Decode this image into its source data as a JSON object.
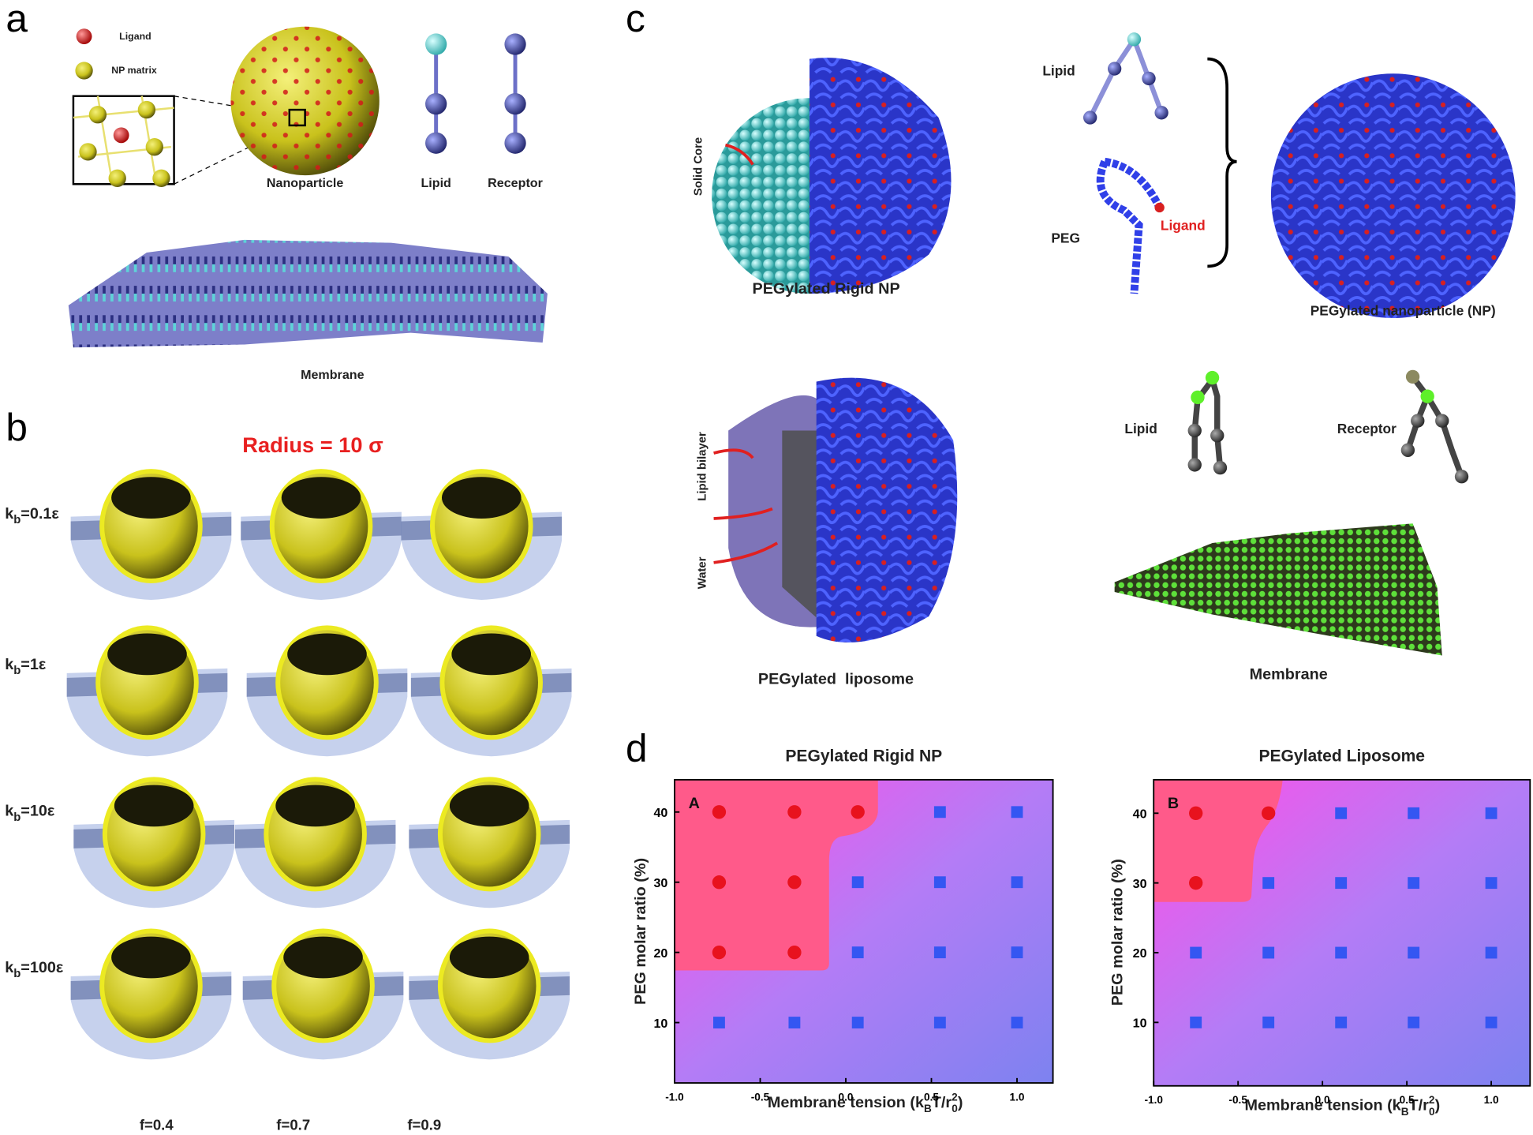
{
  "panel_labels": {
    "a": "a",
    "b": "b",
    "c": "c",
    "d": "d"
  },
  "panel_a": {
    "legend_ligand": "Ligand",
    "legend_matrix": "NP matrix",
    "nanoparticle": "Nanoparticle",
    "lipid": "Lipid",
    "receptor": "Receptor",
    "membrane": "Membrane"
  },
  "panel_b": {
    "title": "Radius = 10 σ",
    "rows": [
      {
        "symbol": "k",
        "subscript": "b",
        "value": "=0.1ε"
      },
      {
        "symbol": "k",
        "subscript": "b",
        "value": "=1ε"
      },
      {
        "symbol": "k",
        "subscript": "b",
        "value": "=10ε"
      },
      {
        "symbol": "k",
        "subscript": "b",
        "value": "=100ε"
      }
    ],
    "columns": [
      "f=0.4",
      "f=0.7",
      "f=0.9"
    ]
  },
  "panel_c": {
    "solid_core": "Solid Core",
    "rigid_np": "PEGylated Rigid NP",
    "lipid": "Lipid",
    "peg": "PEG",
    "ligand": "Ligand",
    "pegylated_np": "PEGylated nanoparticle (NP)",
    "lipid_bilayer": "Lipid bilayer",
    "water": "Water",
    "liposome": "PEGylated  liposome",
    "lipid2": "Lipid",
    "receptor": "Receptor",
    "membrane": "Membrane"
  },
  "chart_data": [
    {
      "type": "scatter",
      "title": "PEGylated Rigid NP",
      "annotation": "A",
      "xlabel_parts": [
        "Membrane tension (k",
        "B",
        "T/r",
        "2",
        "0",
        ")"
      ],
      "ylabel": "PEG molar ratio (%)",
      "xlim": [
        -1.0,
        1.21
      ],
      "ylim": [
        1.4,
        44.6
      ],
      "xticks": [
        {
          "value": -1.0,
          "label": "-1.0"
        },
        {
          "value": -0.5,
          "label": "-0.5"
        },
        {
          "value": 0,
          "label": "0.0"
        },
        {
          "value": 0.5,
          "label": "0.5"
        },
        {
          "value": 1.0,
          "label": "1.0"
        }
      ],
      "yticks": [
        10,
        20,
        30,
        40
      ],
      "series": [
        {
          "color": "#e8121e",
          "marker": "circle",
          "x": [
            -0.74,
            -0.3,
            0.07,
            -0.74,
            -0.3,
            -0.74,
            -0.3
          ],
          "values": [
            40,
            40,
            40,
            30,
            30,
            20,
            20
          ]
        },
        {
          "color": "#3456f2",
          "marker": "square",
          "x": [
            0.55,
            1.0,
            0.07,
            0.55,
            1.0,
            0.07,
            0.55,
            1.0,
            -0.74,
            -0.3,
            0.07,
            0.55,
            1.0
          ],
          "values": [
            40,
            40,
            30,
            30,
            30,
            20,
            20,
            20,
            10,
            10,
            10,
            10,
            10
          ]
        }
      ]
    },
    {
      "type": "scatter",
      "title": "PEGylated Liposome",
      "annotation": "B",
      "xlabel_parts": [
        "Membrane tension (k",
        "B",
        "T/r",
        "2",
        "0",
        ")"
      ],
      "ylabel": "PEG molar ratio (%)",
      "xlim": [
        -1.0,
        1.23
      ],
      "ylim": [
        0.9,
        44.8
      ],
      "xticks": [
        {
          "value": -1.0,
          "label": "-1.0"
        },
        {
          "value": -0.5,
          "label": "-0.5"
        },
        {
          "value": 0,
          "label": "0.0"
        },
        {
          "value": 0.5,
          "label": "0.5"
        },
        {
          "value": 1.0,
          "label": "1.0"
        }
      ],
      "yticks": [
        10,
        20,
        30,
        40
      ],
      "series": [
        {
          "color": "#e8121e",
          "marker": "circle",
          "x": [
            -0.75,
            -0.32,
            -0.75
          ],
          "values": [
            40,
            40,
            30
          ]
        },
        {
          "color": "#3456f2",
          "marker": "square",
          "x": [
            0.11,
            0.54,
            1.0,
            -0.32,
            0.11,
            0.54,
            1.0,
            -0.75,
            -0.32,
            0.11,
            0.54,
            1.0,
            -0.75,
            -0.32,
            0.11,
            0.54,
            1.0
          ],
          "values": [
            40,
            40,
            40,
            30,
            30,
            30,
            30,
            20,
            20,
            20,
            20,
            20,
            10,
            10,
            10,
            10,
            10
          ]
        }
      ]
    }
  ]
}
